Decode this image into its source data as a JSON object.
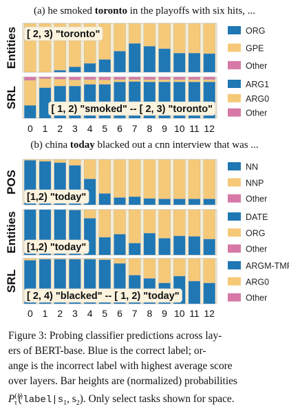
{
  "colors": {
    "correct": "#1f77b4",
    "incorrect": "#f6c978",
    "other": "#d779a6",
    "panel_bg": "#f6ecd2",
    "label_box": "#fbf3de"
  },
  "caption_a": {
    "prefix": "(a) he smoked ",
    "bold": "toronto",
    "suffix": " in the playoffs with six hits, ..."
  },
  "caption_b": {
    "prefix": "(b) china ",
    "bold": "today",
    "suffix": " blacked out a cnn interview that was ..."
  },
  "figure_caption": {
    "line1": "Figure 3:  Probing classifier predictions across lay-",
    "line2": "ers of BERT-base.   Blue is the correct label; or-",
    "line3": "ange is the incorrect label with highest average score",
    "line4": "over layers. Bar heights are (normalized) probabilities",
    "p_main": "P",
    "p_sup": "(ℓ)",
    "p_sub": "τ",
    "code": "(label|s",
    "s1_sub": "1",
    "after_s1": ", s",
    "s2_sub": "2",
    "tail": "). Only select tasks shown for space."
  },
  "x_ticks": [
    "0",
    "1",
    "2",
    "3",
    "4",
    "5",
    "6",
    "7",
    "8",
    "9",
    "10",
    "11",
    "12"
  ],
  "chart_data": [
    {
      "type": "bar",
      "stacked": true,
      "group": "a",
      "ylabel": "Entities",
      "annotation": "[ 2, 3) \"toronto\"",
      "annotation_position": "top-left",
      "categories": [
        "0",
        "1",
        "2",
        "3",
        "4",
        "5",
        "6",
        "7",
        "8",
        "9",
        "10",
        "11",
        "12"
      ],
      "ylim": [
        0,
        1
      ],
      "series": [
        {
          "name": "ORG",
          "role": "correct",
          "values": [
            0.0,
            0.0,
            0.04,
            0.11,
            0.18,
            0.26,
            0.43,
            0.59,
            0.53,
            0.48,
            0.39,
            0.39,
            0.38
          ]
        },
        {
          "name": "GPE",
          "role": "incorrect",
          "values": [
            1.0,
            1.0,
            0.96,
            0.89,
            0.82,
            0.74,
            0.57,
            0.41,
            0.47,
            0.52,
            0.61,
            0.61,
            0.62
          ]
        },
        {
          "name": "Other",
          "role": "other",
          "values": [
            0,
            0,
            0,
            0,
            0,
            0,
            0,
            0,
            0,
            0,
            0,
            0,
            0
          ]
        }
      ],
      "legend": [
        "ORG",
        "GPE",
        "Other"
      ]
    },
    {
      "type": "bar",
      "stacked": true,
      "group": "a",
      "ylabel": "SRL",
      "annotation": "[ 1, 2) \"smoked\" -- [ 2, 3) \"toronto\"",
      "annotation_position": "bottom-right",
      "categories": [
        "0",
        "1",
        "2",
        "3",
        "4",
        "5",
        "6",
        "7",
        "8",
        "9",
        "10",
        "11",
        "12"
      ],
      "ylim": [
        0,
        1
      ],
      "series": [
        {
          "name": "ARG1",
          "role": "correct",
          "values": [
            0.31,
            0.74,
            0.78,
            0.78,
            0.82,
            0.82,
            0.88,
            0.89,
            0.88,
            0.88,
            0.88,
            0.88,
            0.88
          ]
        },
        {
          "name": "ARG0",
          "role": "incorrect",
          "values": [
            0.61,
            0.22,
            0.17,
            0.15,
            0.12,
            0.11,
            0.06,
            0.05,
            0.06,
            0.06,
            0.06,
            0.06,
            0.06
          ]
        },
        {
          "name": "Other",
          "role": "other",
          "values": [
            0.08,
            0.04,
            0.05,
            0.07,
            0.06,
            0.07,
            0.06,
            0.06,
            0.06,
            0.06,
            0.06,
            0.06,
            0.06
          ]
        }
      ],
      "legend": [
        "ARG1",
        "ARG0",
        "Other"
      ]
    },
    {
      "type": "bar",
      "stacked": true,
      "group": "b",
      "ylabel": "POS",
      "annotation": "[1,2) \"today\"",
      "annotation_position": "bottom-left",
      "categories": [
        "0",
        "1",
        "2",
        "3",
        "4",
        "5",
        "6",
        "7",
        "8",
        "9",
        "10",
        "11",
        "12"
      ],
      "ylim": [
        0,
        1
      ],
      "series": [
        {
          "name": "NN",
          "role": "correct",
          "values": [
            0.98,
            0.96,
            0.93,
            0.87,
            0.57,
            0.25,
            0.16,
            0.18,
            0.14,
            0.13,
            0.13,
            0.13,
            0.13
          ]
        },
        {
          "name": "NNP",
          "role": "incorrect",
          "values": [
            0.02,
            0.04,
            0.07,
            0.13,
            0.43,
            0.75,
            0.84,
            0.82,
            0.86,
            0.87,
            0.87,
            0.87,
            0.87
          ]
        },
        {
          "name": "Other",
          "role": "other",
          "values": [
            0,
            0,
            0,
            0,
            0,
            0,
            0,
            0,
            0,
            0,
            0,
            0,
            0
          ]
        }
      ],
      "legend": [
        "NN",
        "NNP",
        "Other"
      ]
    },
    {
      "type": "bar",
      "stacked": true,
      "group": "b",
      "ylabel": "Entities",
      "annotation": "[1,2) \"today\"",
      "annotation_position": "bottom-left",
      "categories": [
        "0",
        "1",
        "2",
        "3",
        "4",
        "5",
        "6",
        "7",
        "8",
        "9",
        "10",
        "11",
        "12"
      ],
      "ylim": [
        0,
        1
      ],
      "series": [
        {
          "name": "DATE",
          "role": "correct",
          "values": [
            1.0,
            1.0,
            1.0,
            0.99,
            0.81,
            0.39,
            0.46,
            0.26,
            0.48,
            0.37,
            0.42,
            0.41,
            0.35
          ]
        },
        {
          "name": "ORG",
          "role": "incorrect",
          "values": [
            0.0,
            0.0,
            0.0,
            0.01,
            0.19,
            0.61,
            0.54,
            0.74,
            0.52,
            0.63,
            0.58,
            0.59,
            0.65
          ]
        },
        {
          "name": "Other",
          "role": "other",
          "values": [
            0,
            0,
            0,
            0,
            0,
            0,
            0,
            0,
            0,
            0,
            0,
            0,
            0
          ]
        }
      ],
      "legend": [
        "DATE",
        "ORG",
        "Other"
      ]
    },
    {
      "type": "bar",
      "stacked": true,
      "group": "b",
      "ylabel": "SRL",
      "annotation": "[ 2, 4) \"blacked\" -- [ 1, 2) \"today\"",
      "annotation_position": "bottom-left",
      "categories": [
        "0",
        "1",
        "2",
        "3",
        "4",
        "5",
        "6",
        "7",
        "8",
        "9",
        "10",
        "11",
        "12"
      ],
      "ylim": [
        0,
        1
      ],
      "series": [
        {
          "name": "ARGM-TMP",
          "role": "correct",
          "values": [
            0.96,
            0.98,
            0.98,
            0.98,
            0.98,
            0.97,
            0.89,
            0.63,
            0.56,
            0.46,
            0.61,
            0.5,
            0.46
          ]
        },
        {
          "name": "ARG0",
          "role": "incorrect",
          "values": [
            0.04,
            0.02,
            0.02,
            0.02,
            0.02,
            0.03,
            0.11,
            0.37,
            0.44,
            0.54,
            0.39,
            0.5,
            0.54
          ]
        },
        {
          "name": "Other",
          "role": "other",
          "values": [
            0,
            0,
            0,
            0,
            0,
            0,
            0,
            0,
            0,
            0,
            0,
            0,
            0
          ]
        }
      ],
      "legend": [
        "ARGM-TMP",
        "ARG0",
        "Other"
      ]
    }
  ]
}
